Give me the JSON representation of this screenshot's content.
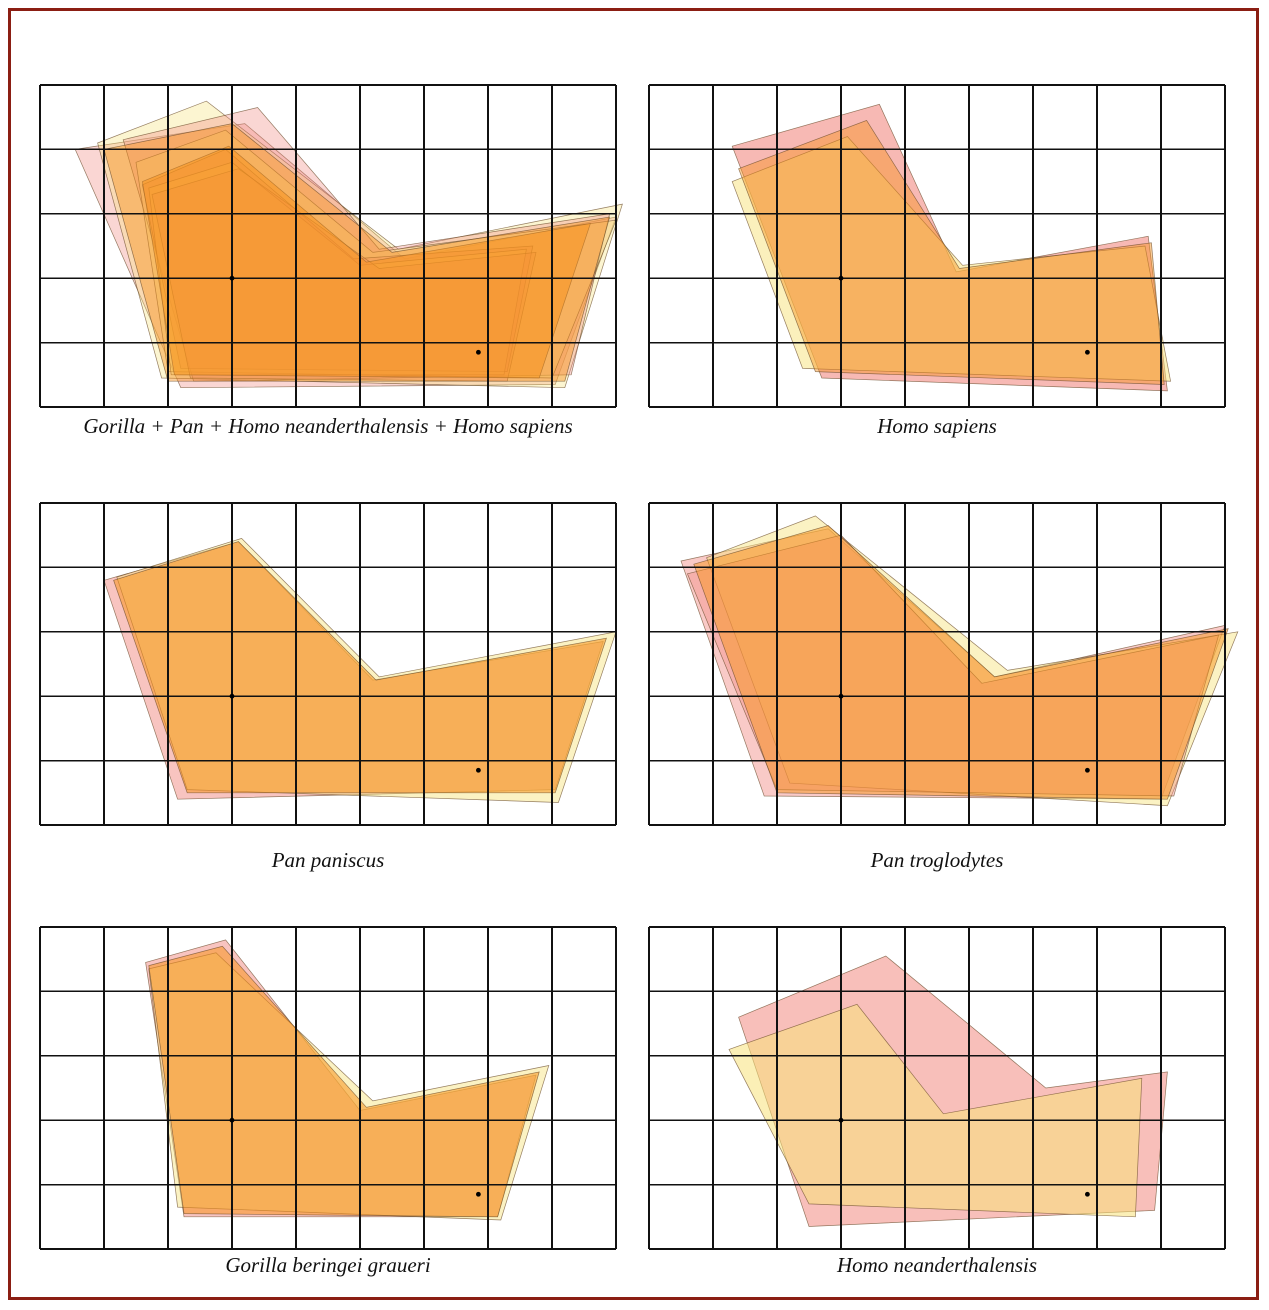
{
  "frame": {
    "border_color": "#8b1e13"
  },
  "colors": {
    "pink": "#f28a82",
    "yellow": "#f7e27a",
    "orange": "#f7931e",
    "grid": "#111111"
  },
  "panels": [
    {
      "id": "combined",
      "caption": "Gorilla + Pan + Homo neanderthalensis + Homo sapiens",
      "landmarks": [
        [
          3,
          3
        ],
        [
          6.85,
          4.15
        ]
      ],
      "outlines": [
        {
          "color": "pink",
          "opacity": 0.35,
          "points": [
            [
              0.55,
              1.0
            ],
            [
              3.2,
              0.6
            ],
            [
              5.7,
              2.7
            ],
            [
              9.0,
              2.05
            ],
            [
              8.05,
              4.65
            ],
            [
              2.2,
              4.7
            ]
          ]
        },
        {
          "color": "yellow",
          "opacity": 0.35,
          "points": [
            [
              0.9,
              0.9
            ],
            [
              2.6,
              0.25
            ],
            [
              5.6,
              2.55
            ],
            [
              9.1,
              1.85
            ],
            [
              8.2,
              4.7
            ],
            [
              1.9,
              4.55
            ]
          ]
        },
        {
          "color": "pink",
          "opacity": 0.35,
          "points": [
            [
              1.3,
              0.85
            ],
            [
              3.4,
              0.35
            ],
            [
              5.3,
              2.55
            ],
            [
              8.9,
              2.0
            ],
            [
              8.3,
              4.5
            ],
            [
              2.4,
              4.6
            ]
          ]
        },
        {
          "color": "yellow",
          "opacity": 0.35,
          "points": [
            [
              1.5,
              1.2
            ],
            [
              2.9,
              0.7
            ],
            [
              5.2,
              2.6
            ],
            [
              9.0,
              2.1
            ],
            [
              8.0,
              4.55
            ],
            [
              2.0,
              4.45
            ]
          ]
        },
        {
          "color": "pink",
          "opacity": 0.35,
          "points": [
            [
              1.6,
              1.55
            ],
            [
              2.9,
              1.0
            ],
            [
              4.9,
              2.7
            ],
            [
              7.7,
              2.5
            ],
            [
              7.3,
              4.45
            ],
            [
              2.2,
              4.4
            ]
          ]
        },
        {
          "color": "yellow",
          "opacity": 0.35,
          "points": [
            [
              1.7,
              1.6
            ],
            [
              3.0,
              1.2
            ],
            [
              5.0,
              2.8
            ],
            [
              7.6,
              2.55
            ],
            [
              7.25,
              4.5
            ],
            [
              2.05,
              4.5
            ]
          ]
        },
        {
          "color": "pink",
          "opacity": 0.35,
          "points": [
            [
              1.75,
              1.7
            ],
            [
              3.1,
              1.3
            ],
            [
              5.3,
              2.85
            ],
            [
              7.75,
              2.6
            ],
            [
              7.3,
              4.6
            ],
            [
              2.35,
              4.55
            ]
          ]
        },
        {
          "color": "orange",
          "opacity": 0.55,
          "points": [
            [
              1.6,
              1.5
            ],
            [
              2.95,
              0.95
            ],
            [
              5.1,
              2.75
            ],
            [
              8.6,
              2.15
            ],
            [
              7.8,
              4.55
            ],
            [
              2.1,
              4.5
            ]
          ]
        },
        {
          "color": "orange",
          "opacity": 0.45,
          "points": [
            [
              1.0,
              1.0
            ],
            [
              3.0,
              0.6
            ],
            [
              5.5,
              2.6
            ],
            [
              8.9,
              2.05
            ],
            [
              8.2,
              4.6
            ],
            [
              2.0,
              4.6
            ]
          ]
        }
      ]
    },
    {
      "id": "homo-sapiens",
      "caption": "Homo sapiens",
      "landmarks": [
        [
          3,
          3
        ],
        [
          6.85,
          4.15
        ]
      ],
      "outlines": [
        {
          "color": "pink",
          "opacity": 0.6,
          "points": [
            [
              1.3,
              0.95
            ],
            [
              3.6,
              0.3
            ],
            [
              4.8,
              2.9
            ],
            [
              7.8,
              2.35
            ],
            [
              8.1,
              4.75
            ],
            [
              2.7,
              4.55
            ]
          ]
        },
        {
          "color": "yellow",
          "opacity": 0.5,
          "points": [
            [
              1.3,
              1.5
            ],
            [
              3.1,
              0.8
            ],
            [
              4.9,
              2.8
            ],
            [
              7.75,
              2.5
            ],
            [
              8.15,
              4.6
            ],
            [
              2.4,
              4.4
            ]
          ]
        },
        {
          "color": "orange",
          "opacity": 0.45,
          "points": [
            [
              1.4,
              1.3
            ],
            [
              3.4,
              0.55
            ],
            [
              4.85,
              2.85
            ],
            [
              7.85,
              2.45
            ],
            [
              8.05,
              4.65
            ],
            [
              2.6,
              4.45
            ]
          ]
        }
      ]
    },
    {
      "id": "pan-paniscus",
      "caption": "Pan paniscus",
      "landmarks": [
        [
          3,
          3
        ],
        [
          6.85,
          4.15
        ]
      ],
      "outlines": [
        {
          "color": "pink",
          "opacity": 0.5,
          "points": [
            [
              1.0,
              1.2
            ],
            [
              3.1,
              0.6
            ],
            [
              5.2,
              2.75
            ],
            [
              8.8,
              2.15
            ],
            [
              8.05,
              4.45
            ],
            [
              2.15,
              4.6
            ]
          ]
        },
        {
          "color": "yellow",
          "opacity": 0.45,
          "points": [
            [
              1.2,
              1.15
            ],
            [
              3.15,
              0.55
            ],
            [
              5.3,
              2.7
            ],
            [
              9.0,
              2.0
            ],
            [
              8.1,
              4.65
            ],
            [
              2.3,
              4.45
            ]
          ]
        },
        {
          "color": "orange",
          "opacity": 0.55,
          "points": [
            [
              1.15,
              1.2
            ],
            [
              3.1,
              0.6
            ],
            [
              5.25,
              2.75
            ],
            [
              8.85,
              2.1
            ],
            [
              8.05,
              4.5
            ],
            [
              2.3,
              4.5
            ]
          ]
        }
      ]
    },
    {
      "id": "pan-troglodytes",
      "caption": "Pan troglodytes",
      "landmarks": [
        [
          3,
          3
        ],
        [
          6.85,
          4.15
        ]
      ],
      "outlines": [
        {
          "color": "pink",
          "opacity": 0.45,
          "points": [
            [
              0.5,
              0.9
            ],
            [
              2.8,
              0.4
            ],
            [
              5.4,
              2.7
            ],
            [
              9.0,
              1.9
            ],
            [
              8.0,
              4.6
            ],
            [
              1.8,
              4.55
            ]
          ]
        },
        {
          "color": "yellow",
          "opacity": 0.45,
          "points": [
            [
              0.9,
              0.85
            ],
            [
              2.6,
              0.2
            ],
            [
              5.6,
              2.6
            ],
            [
              9.2,
              2.0
            ],
            [
              8.1,
              4.7
            ],
            [
              2.2,
              4.35
            ]
          ]
        },
        {
          "color": "pink",
          "opacity": 0.4,
          "points": [
            [
              0.6,
              1.1
            ],
            [
              3.0,
              0.5
            ],
            [
              5.2,
              2.8
            ],
            [
              8.9,
              2.05
            ],
            [
              8.2,
              4.55
            ],
            [
              2.0,
              4.45
            ]
          ]
        },
        {
          "color": "orange",
          "opacity": 0.5,
          "points": [
            [
              0.7,
              0.95
            ],
            [
              2.8,
              0.35
            ],
            [
              5.4,
              2.7
            ],
            [
              9.05,
              1.95
            ],
            [
              8.1,
              4.6
            ],
            [
              2.0,
              4.5
            ]
          ]
        }
      ]
    },
    {
      "id": "gorilla-beringei-graueri",
      "caption": "Gorilla beringei graueri",
      "landmarks": [
        [
          3,
          3
        ],
        [
          6.85,
          4.15
        ]
      ],
      "outlines": [
        {
          "color": "pink",
          "opacity": 0.5,
          "points": [
            [
              1.65,
              0.55
            ],
            [
              2.9,
              0.2
            ],
            [
              5.0,
              2.85
            ],
            [
              7.75,
              2.3
            ],
            [
              7.15,
              4.5
            ],
            [
              2.25,
              4.5
            ]
          ]
        },
        {
          "color": "yellow",
          "opacity": 0.45,
          "points": [
            [
              1.7,
              0.65
            ],
            [
              2.75,
              0.4
            ],
            [
              5.2,
              2.7
            ],
            [
              7.95,
              2.15
            ],
            [
              7.2,
              4.55
            ],
            [
              2.15,
              4.35
            ]
          ]
        },
        {
          "color": "orange",
          "opacity": 0.55,
          "points": [
            [
              1.7,
              0.6
            ],
            [
              2.85,
              0.3
            ],
            [
              5.1,
              2.8
            ],
            [
              7.8,
              2.25
            ],
            [
              7.15,
              4.5
            ],
            [
              2.25,
              4.45
            ]
          ]
        }
      ]
    },
    {
      "id": "homo-neanderthalensis",
      "caption": "Homo neanderthalensis",
      "landmarks": [
        [
          3,
          3
        ],
        [
          6.85,
          4.15
        ]
      ],
      "outlines": [
        {
          "color": "pink",
          "opacity": 0.55,
          "points": [
            [
              1.4,
              1.4
            ],
            [
              3.7,
              0.45
            ],
            [
              6.2,
              2.5
            ],
            [
              8.1,
              2.25
            ],
            [
              7.9,
              4.4
            ],
            [
              2.5,
              4.65
            ]
          ]
        },
        {
          "color": "yellow",
          "opacity": 0.55,
          "points": [
            [
              1.25,
              1.9
            ],
            [
              3.25,
              1.2
            ],
            [
              4.6,
              2.9
            ],
            [
              7.7,
              2.35
            ],
            [
              7.6,
              4.5
            ],
            [
              2.5,
              4.3
            ]
          ]
        }
      ]
    }
  ]
}
